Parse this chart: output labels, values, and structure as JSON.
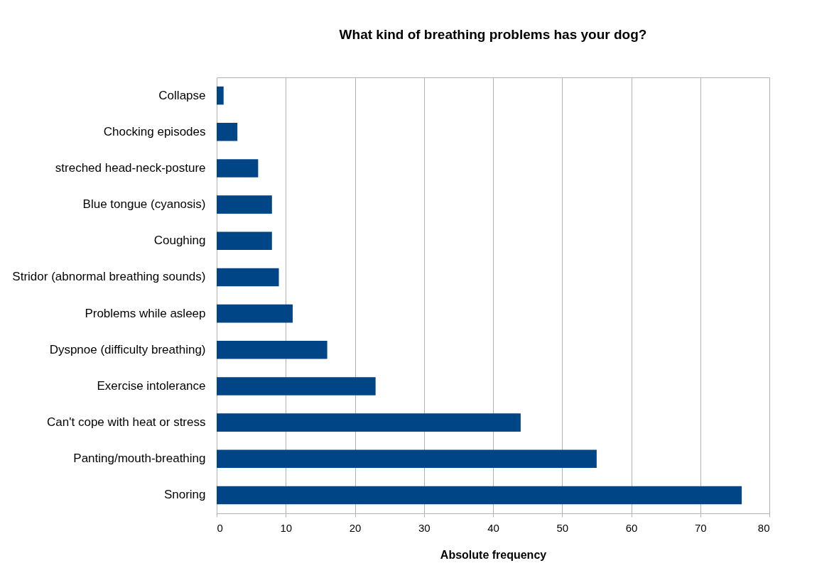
{
  "chart_data": {
    "type": "bar",
    "orientation": "horizontal",
    "title": "What kind of breathing problems has your dog?",
    "xlabel": "Absolute frequency",
    "categories": [
      "Collapse",
      "Chocking episodes",
      "streched head-neck-posture",
      "Blue tongue (cyanosis)",
      "Coughing",
      "Stridor (abnormal breathing sounds)",
      "Problems while asleep",
      "Dyspnoe (difficulty breathing)",
      "Exercise intolerance",
      "Can't cope with heat or stress",
      "Panting/mouth-breathing",
      "Snoring"
    ],
    "values": [
      1,
      3,
      6,
      8,
      8,
      9,
      11,
      16,
      23,
      44,
      55,
      76
    ],
    "color": "#004586",
    "xlim": [
      0,
      80
    ],
    "xticks": [
      0,
      10,
      20,
      30,
      40,
      50,
      60,
      70,
      80
    ],
    "grid": "x"
  }
}
